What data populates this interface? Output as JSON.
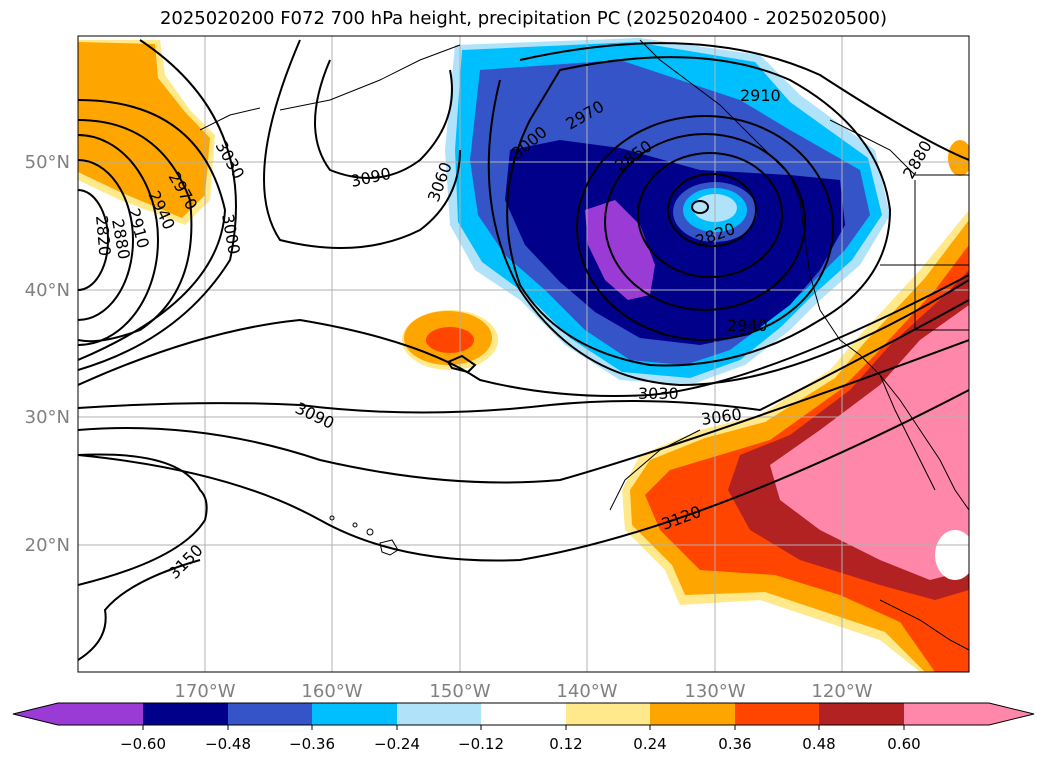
{
  "title": "2025020200 F072 700 hPa height, precipitation PC (2025020400 - 2025020500)",
  "axes": {
    "lon_labels": [
      "170°W",
      "160°W",
      "150°W",
      "140°W",
      "130°W",
      "120°W"
    ],
    "lat_labels": [
      "50°N",
      "40°N",
      "30°N",
      "20°N"
    ]
  },
  "contour_labels": [
    "2820",
    "2850",
    "2880",
    "2910",
    "2940",
    "2970",
    "3000",
    "3030",
    "3060",
    "3090",
    "3120",
    "3150"
  ],
  "colorbar": {
    "ticks": [
      "−0.60",
      "−0.48",
      "−0.36",
      "−0.24",
      "−0.12",
      "0.12",
      "0.24",
      "0.36",
      "0.48",
      "0.60"
    ],
    "colors": [
      "#9a3bd6",
      "#00008b",
      "#3454c8",
      "#00bfff",
      "#b0e2fa",
      "#ffffff",
      "#ffe98a",
      "#ffa500",
      "#ff4500",
      "#b22222",
      "#ff88aa"
    ]
  }
}
